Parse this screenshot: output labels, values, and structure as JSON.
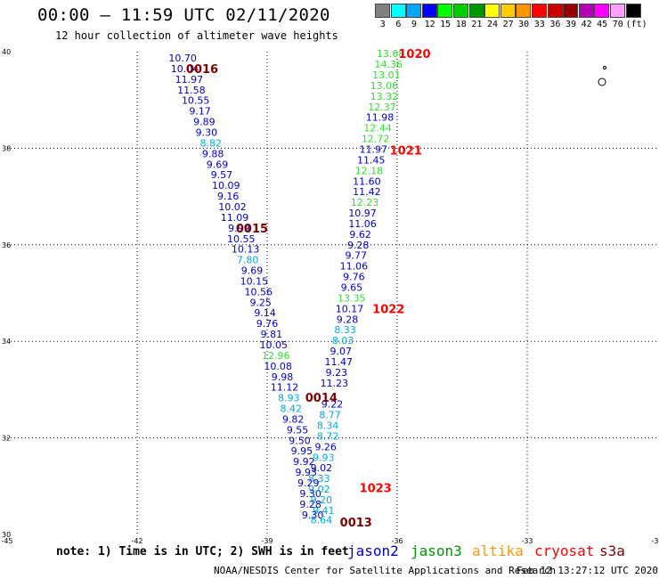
{
  "header": {
    "title": "00:00 – 11:59 UTC 02/11/2020",
    "subtitle": "12 hour collection of altimeter wave heights"
  },
  "legend": {
    "levels": [
      "3",
      "6",
      "9",
      "12",
      "15",
      "18",
      "21",
      "24",
      "27",
      "30",
      "33",
      "36",
      "39",
      "42",
      "45",
      "70",
      "(ft)"
    ],
    "colors": [
      "#808080",
      "#00ffff",
      "#00a8ff",
      "#0000ff",
      "#00ff00",
      "#00cc00",
      "#009600",
      "#ffff00",
      "#ffcc00",
      "#ff9600",
      "#ff0000",
      "#cc0000",
      "#960000",
      "#b400b4",
      "#ff00ff",
      "#ffa0ff",
      "#000000"
    ]
  },
  "axes": {
    "lon_labels": [
      "-45",
      "-42",
      "-39",
      "-36",
      "-33",
      "-30"
    ],
    "lat_labels": [
      "30",
      "32",
      "34",
      "36",
      "38",
      "40"
    ]
  },
  "points": [
    {
      "t": "10.70",
      "c": "#0000cc",
      "lon": -40.95,
      "lat": 39.87
    },
    {
      "t": "10.04",
      "c": "#0000cc",
      "lon": -40.9,
      "lat": 39.65
    },
    {
      "t": "11.97",
      "c": "#0000cc",
      "lon": -40.8,
      "lat": 39.43
    },
    {
      "t": "11.58",
      "c": "#0000cc",
      "lon": -40.75,
      "lat": 39.21
    },
    {
      "t": "10.55",
      "c": "#0000cc",
      "lon": -40.65,
      "lat": 38.99
    },
    {
      "t": "9.17",
      "c": "#0000cc",
      "lon": -40.55,
      "lat": 38.77
    },
    {
      "t": "9.89",
      "c": "#0000cc",
      "lon": -40.45,
      "lat": 38.55
    },
    {
      "t": "9.30",
      "c": "#0000cc",
      "lon": -40.4,
      "lat": 38.33
    },
    {
      "t": "8.82",
      "c": "#00a8e0",
      "lon": -40.3,
      "lat": 38.11
    },
    {
      "t": "9.88",
      "c": "#0000cc",
      "lon": -40.25,
      "lat": 37.89
    },
    {
      "t": "9.69",
      "c": "#0000cc",
      "lon": -40.15,
      "lat": 37.67
    },
    {
      "t": "9.57",
      "c": "#0000cc",
      "lon": -40.05,
      "lat": 37.45
    },
    {
      "t": "10.09",
      "c": "#0000cc",
      "lon": -39.95,
      "lat": 37.23
    },
    {
      "t": "9.16",
      "c": "#0000cc",
      "lon": -39.9,
      "lat": 37.01
    },
    {
      "t": "10.02",
      "c": "#0000cc",
      "lon": -39.8,
      "lat": 36.79
    },
    {
      "t": "11.09",
      "c": "#0000cc",
      "lon": -39.75,
      "lat": 36.57
    },
    {
      "t": "9.99",
      "c": "#0000cc",
      "lon": -39.65,
      "lat": 36.35
    },
    {
      "t": "10.55",
      "c": "#0000cc",
      "lon": -39.6,
      "lat": 36.13
    },
    {
      "t": "10.13",
      "c": "#0000cc",
      "lon": -39.5,
      "lat": 35.91
    },
    {
      "t": "7.80",
      "c": "#00a8e0",
      "lon": -39.45,
      "lat": 35.69
    },
    {
      "t": "9.69",
      "c": "#0000cc",
      "lon": -39.35,
      "lat": 35.47
    },
    {
      "t": "10.15",
      "c": "#0000cc",
      "lon": -39.3,
      "lat": 35.25
    },
    {
      "t": "10.56",
      "c": "#0000cc",
      "lon": -39.2,
      "lat": 35.03
    },
    {
      "t": "9.25",
      "c": "#0000cc",
      "lon": -39.15,
      "lat": 34.81
    },
    {
      "t": "9.14",
      "c": "#0000cc",
      "lon": -39.05,
      "lat": 34.59
    },
    {
      "t": "9.76",
      "c": "#0000cc",
      "lon": -39.0,
      "lat": 34.37
    },
    {
      "t": "9.81",
      "c": "#0000cc",
      "lon": -38.9,
      "lat": 34.15
    },
    {
      "t": "10.05",
      "c": "#0000cc",
      "lon": -38.85,
      "lat": 33.93
    },
    {
      "t": "12.96",
      "c": "#33dd33",
      "lon": -38.8,
      "lat": 33.71
    },
    {
      "t": "10.08",
      "c": "#0000cc",
      "lon": -38.75,
      "lat": 33.49
    },
    {
      "t": "9.98",
      "c": "#0000cc",
      "lon": -38.65,
      "lat": 33.27
    },
    {
      "t": "11.12",
      "c": "#0000cc",
      "lon": -38.6,
      "lat": 33.05
    },
    {
      "t": "8.93",
      "c": "#00a8e0",
      "lon": -38.5,
      "lat": 32.83
    },
    {
      "t": "8.42",
      "c": "#00a8e0",
      "lon": -38.45,
      "lat": 32.61
    },
    {
      "t": "9.82",
      "c": "#0000cc",
      "lon": -38.4,
      "lat": 32.39
    },
    {
      "t": "9.55",
      "c": "#0000cc",
      "lon": -38.3,
      "lat": 32.17
    },
    {
      "t": "9.50",
      "c": "#0000cc",
      "lon": -38.25,
      "lat": 31.95
    },
    {
      "t": "9.95",
      "c": "#0000cc",
      "lon": -38.2,
      "lat": 31.73
    },
    {
      "t": "9.92",
      "c": "#0000cc",
      "lon": -38.15,
      "lat": 31.51
    },
    {
      "t": "9.93",
      "c": "#0000cc",
      "lon": -38.1,
      "lat": 31.29
    },
    {
      "t": "9.29",
      "c": "#0000cc",
      "lon": -38.05,
      "lat": 31.07
    },
    {
      "t": "9.30",
      "c": "#0000cc",
      "lon": -38.0,
      "lat": 30.85
    },
    {
      "t": "9.28",
      "c": "#0000cc",
      "lon": -38.0,
      "lat": 30.63
    },
    {
      "t": "9.30",
      "c": "#0000cc",
      "lon": -37.95,
      "lat": 30.41
    },
    {
      "t": "8.64",
      "c": "#00a8e0",
      "lon": -37.75,
      "lat": 30.3
    },
    {
      "t": "9.41",
      "c": "#00a8e0",
      "lon": -37.7,
      "lat": 30.5
    },
    {
      "t": "9.20",
      "c": "#00a8e0",
      "lon": -37.75,
      "lat": 30.72
    },
    {
      "t": "9.02",
      "c": "#00a8e0",
      "lon": -37.8,
      "lat": 30.94
    },
    {
      "t": "8.33",
      "c": "#00a8e0",
      "lon": -37.8,
      "lat": 31.16
    },
    {
      "t": "9.02",
      "c": "#0000cc",
      "lon": -37.75,
      "lat": 31.38
    },
    {
      "t": "9.93",
      "c": "#00a8e0",
      "lon": -37.7,
      "lat": 31.6
    },
    {
      "t": "9.26",
      "c": "#0000cc",
      "lon": -37.65,
      "lat": 31.82
    },
    {
      "t": "8.72",
      "c": "#00a8e0",
      "lon": -37.6,
      "lat": 32.04
    },
    {
      "t": "8.34",
      "c": "#00a8e0",
      "lon": -37.6,
      "lat": 32.26
    },
    {
      "t": "8.77",
      "c": "#00a8e0",
      "lon": -37.55,
      "lat": 32.48
    },
    {
      "t": "9.22",
      "c": "#0000cc",
      "lon": -37.5,
      "lat": 32.7
    },
    {
      "t": "11.23",
      "c": "#0000cc",
      "lon": -37.45,
      "lat": 33.14
    },
    {
      "t": "9.23",
      "c": "#0000cc",
      "lon": -37.4,
      "lat": 33.36
    },
    {
      "t": "11.47",
      "c": "#0000cc",
      "lon": -37.35,
      "lat": 33.58
    },
    {
      "t": "9.07",
      "c": "#0000cc",
      "lon": -37.3,
      "lat": 33.8
    },
    {
      "t": "8.03",
      "c": "#00a8e0",
      "lon": -37.25,
      "lat": 34.02
    },
    {
      "t": "8.33",
      "c": "#00a8e0",
      "lon": -37.2,
      "lat": 34.24
    },
    {
      "t": "9.28",
      "c": "#0000cc",
      "lon": -37.15,
      "lat": 34.46
    },
    {
      "t": "10.17",
      "c": "#0000cc",
      "lon": -37.1,
      "lat": 34.68
    },
    {
      "t": "13.35",
      "c": "#33dd33",
      "lon": -37.05,
      "lat": 34.9
    },
    {
      "t": "9.65",
      "c": "#0000cc",
      "lon": -37.05,
      "lat": 35.12
    },
    {
      "t": "9.76",
      "c": "#0000cc",
      "lon": -37.0,
      "lat": 35.34
    },
    {
      "t": "11.06",
      "c": "#0000cc",
      "lon": -37.0,
      "lat": 35.56
    },
    {
      "t": "9.77",
      "c": "#0000cc",
      "lon": -36.95,
      "lat": 35.78
    },
    {
      "t": "9.28",
      "c": "#0000cc",
      "lon": -36.9,
      "lat": 36.0
    },
    {
      "t": "9.62",
      "c": "#0000cc",
      "lon": -36.85,
      "lat": 36.22
    },
    {
      "t": "11.06",
      "c": "#0000cc",
      "lon": -36.8,
      "lat": 36.44
    },
    {
      "t": "10.97",
      "c": "#0000cc",
      "lon": -36.8,
      "lat": 36.66
    },
    {
      "t": "12.23",
      "c": "#33dd33",
      "lon": -36.75,
      "lat": 36.88
    },
    {
      "t": "11.42",
      "c": "#0000cc",
      "lon": -36.7,
      "lat": 37.1
    },
    {
      "t": "11.60",
      "c": "#0000cc",
      "lon": -36.7,
      "lat": 37.32
    },
    {
      "t": "12.18",
      "c": "#33dd33",
      "lon": -36.65,
      "lat": 37.54
    },
    {
      "t": "11.45",
      "c": "#0000cc",
      "lon": -36.6,
      "lat": 37.76
    },
    {
      "t": "11.97",
      "c": "#0000cc",
      "lon": -36.55,
      "lat": 37.98
    },
    {
      "t": "12.72",
      "c": "#33dd33",
      "lon": -36.5,
      "lat": 38.2
    },
    {
      "t": "12.44",
      "c": "#33dd33",
      "lon": -36.45,
      "lat": 38.42
    },
    {
      "t": "11.98",
      "c": "#0000cc",
      "lon": -36.4,
      "lat": 38.64
    },
    {
      "t": "12.37",
      "c": "#33dd33",
      "lon": -36.35,
      "lat": 38.86
    },
    {
      "t": "13.32",
      "c": "#33dd33",
      "lon": -36.3,
      "lat": 39.08
    },
    {
      "t": "13.06",
      "c": "#33dd33",
      "lon": -36.3,
      "lat": 39.3
    },
    {
      "t": "13.01",
      "c": "#33dd33",
      "lon": -36.25,
      "lat": 39.52
    },
    {
      "t": "14.36",
      "c": "#33dd33",
      "lon": -36.2,
      "lat": 39.74
    },
    {
      "t": "13.68",
      "c": "#33dd33",
      "lon": -36.15,
      "lat": 39.96
    }
  ],
  "time_labels": [
    {
      "t": "0016",
      "c": "#800000",
      "lon": -40.5,
      "lat": 39.65
    },
    {
      "t": "0015",
      "c": "#800000",
      "lon": -39.35,
      "lat": 36.35
    },
    {
      "t": "0014",
      "c": "#800000",
      "lon": -37.75,
      "lat": 32.84
    },
    {
      "t": "0013",
      "c": "#800000",
      "lon": -36.95,
      "lat": 30.26
    },
    {
      "t": "1020",
      "c": "#ff0000",
      "lon": -35.6,
      "lat": 39.96
    },
    {
      "t": "1021",
      "c": "#ff0000",
      "lon": -35.8,
      "lat": 37.96
    },
    {
      "t": "1022",
      "c": "#ff0000",
      "lon": -36.2,
      "lat": 34.68
    },
    {
      "t": "1023",
      "c": "#ff0000",
      "lon": -36.5,
      "lat": 30.97
    }
  ],
  "note": "note: 1) Time is in UTC; 2) SWH is in feet",
  "satellites": [
    {
      "name": "jason2",
      "color": "#0000cc"
    },
    {
      "name": "jason3",
      "color": "#009600"
    },
    {
      "name": "altika",
      "color": "#ff9600"
    },
    {
      "name": "cryosat",
      "color": "#ff0000"
    },
    {
      "name": "s3a",
      "color": "#800000"
    }
  ],
  "footer": {
    "credit": "NOAA/NESDIS Center for Satellite Applications and Research",
    "generated": "Feb 12 13:27:12 UTC 2020"
  }
}
